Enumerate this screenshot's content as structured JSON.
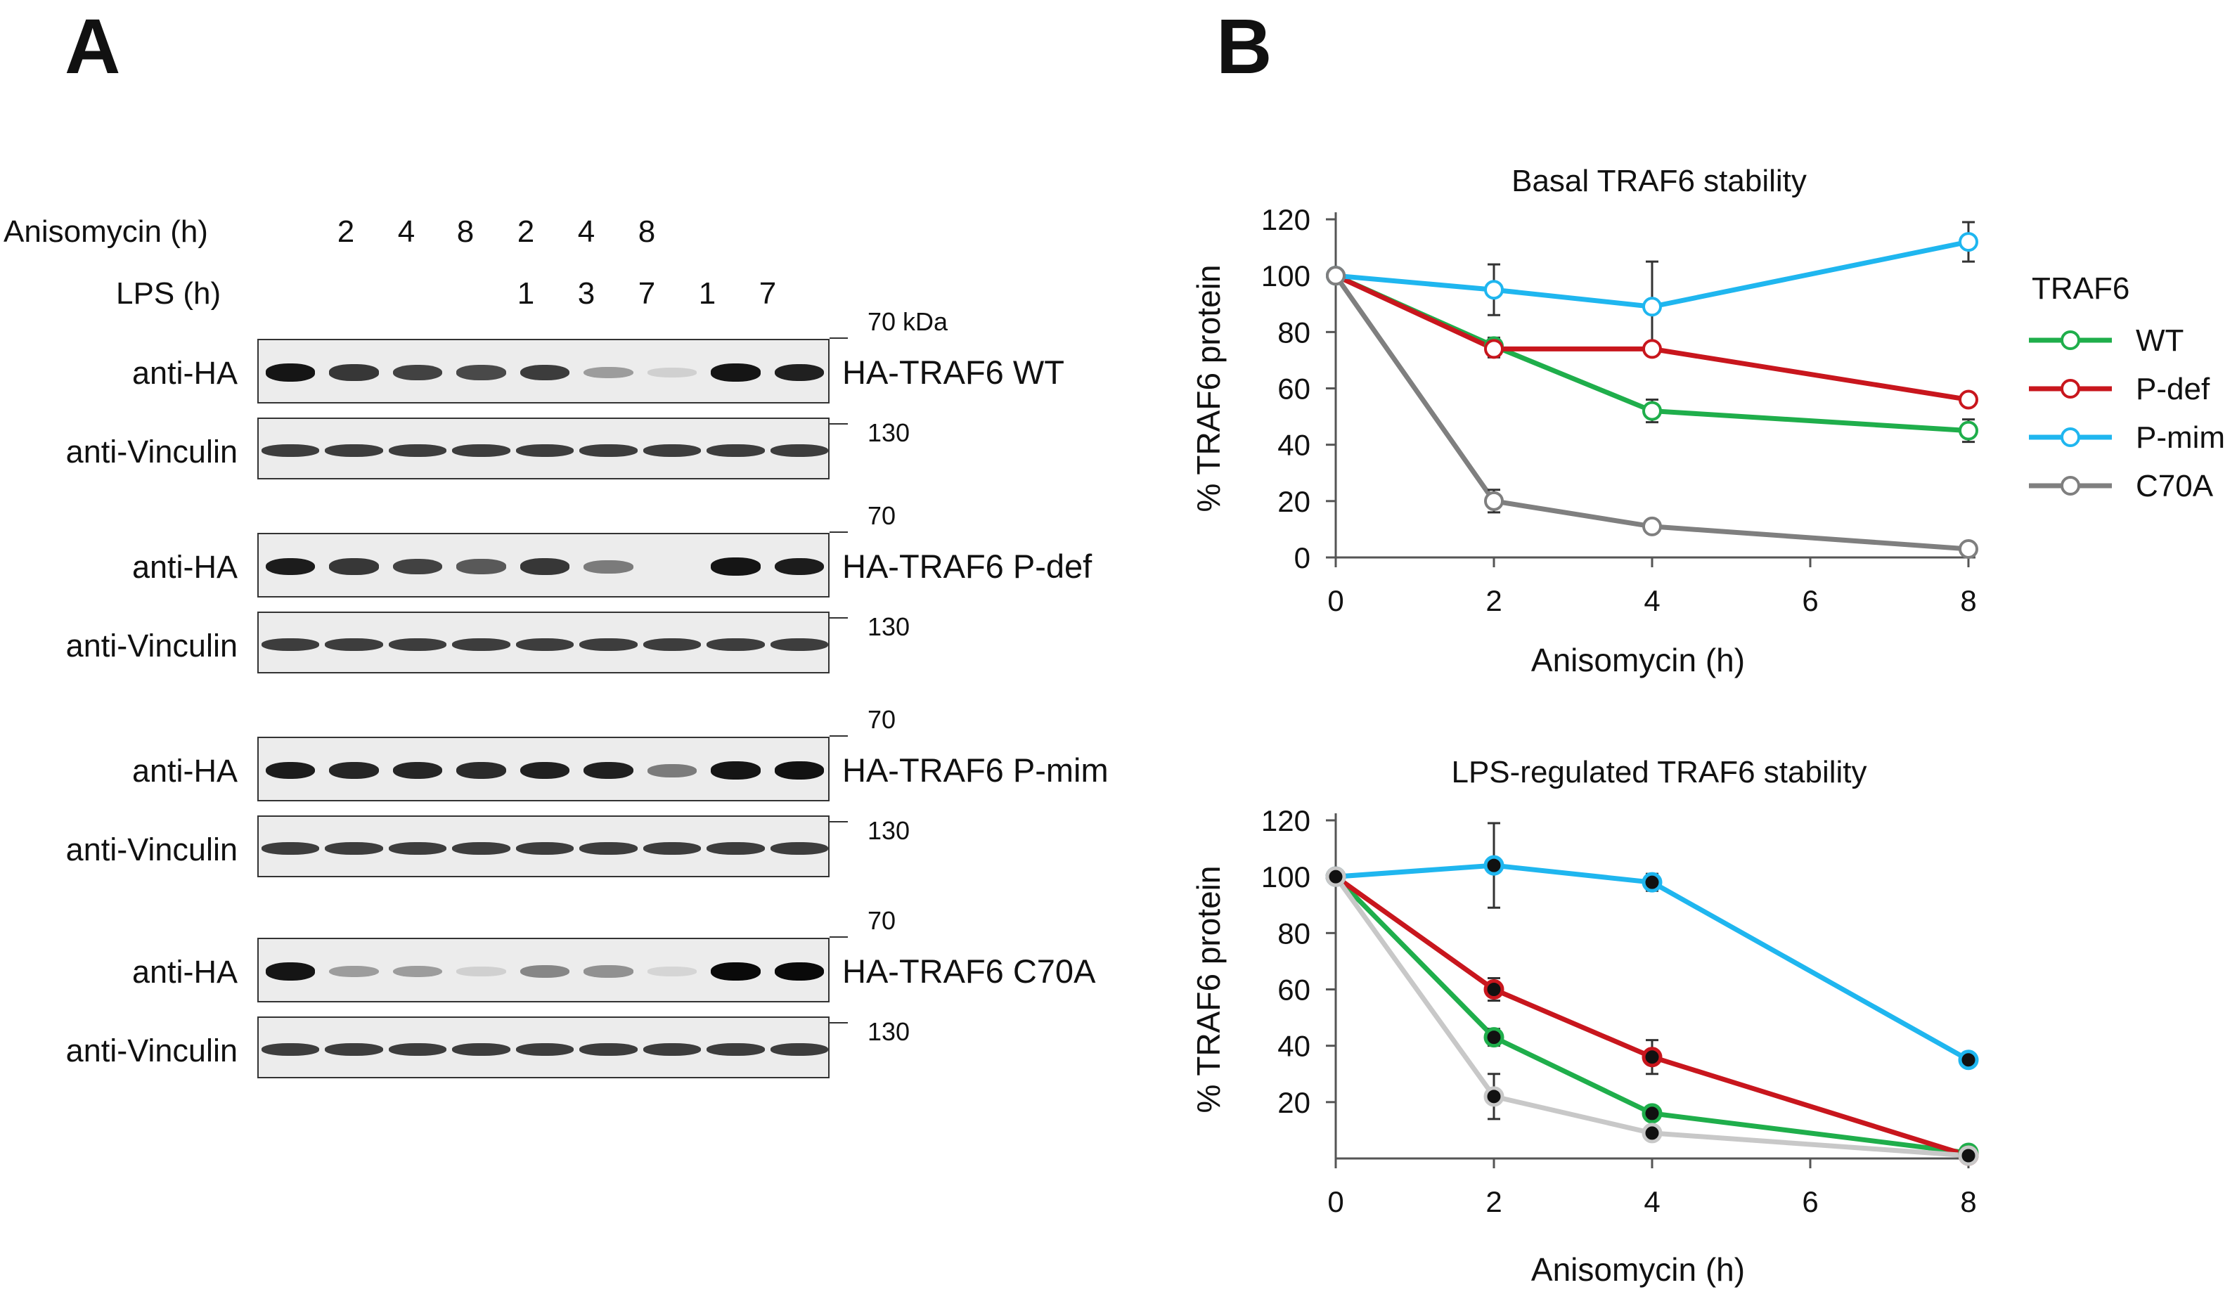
{
  "panels": {
    "a": "A",
    "b": "B"
  },
  "header": {
    "anisomycin_label": "Anisomycin (h)",
    "lps_label": "LPS (h)",
    "anisomycin_values": [
      "2",
      "4",
      "8",
      "2",
      "4",
      "8"
    ],
    "lps_values": [
      "1",
      "3",
      "7",
      "1",
      "7"
    ]
  },
  "blots": [
    {
      "ha_label": "anti-HA",
      "vinc_label": "anti-Vinculin",
      "construct": "HA-TRAF6 WT",
      "marker_top": "70 kDa",
      "marker_vinc": "130",
      "ha_intensity": [
        0.95,
        0.8,
        0.75,
        0.72,
        0.78,
        0.35,
        0.12,
        0.95,
        0.9
      ]
    },
    {
      "ha_label": "anti-HA",
      "vinc_label": "anti-Vinculin",
      "construct": "HA-TRAF6 P-def",
      "marker_top": "70",
      "marker_vinc": "130",
      "ha_intensity": [
        0.92,
        0.8,
        0.75,
        0.65,
        0.8,
        0.5,
        0.0,
        0.95,
        0.92
      ]
    },
    {
      "ha_label": "anti-HA",
      "vinc_label": "anti-Vinculin",
      "construct": "HA-TRAF6 P-mim",
      "marker_top": "70",
      "marker_vinc": "130",
      "ha_intensity": [
        0.92,
        0.88,
        0.88,
        0.86,
        0.9,
        0.9,
        0.5,
        0.95,
        0.97
      ]
    },
    {
      "ha_label": "anti-HA",
      "vinc_label": "anti-Vinculin",
      "construct": "HA-TRAF6 C70A",
      "marker_top": "70",
      "marker_vinc": "130",
      "ha_intensity": [
        0.95,
        0.35,
        0.35,
        0.12,
        0.45,
        0.4,
        0.1,
        1.0,
        1.0
      ]
    }
  ],
  "chart_data": [
    {
      "type": "line",
      "title": "Basal TRAF6 stability",
      "xlabel": "Anisomycin (h)",
      "ylabel": "% TRAF6 protein",
      "x": [
        0,
        2,
        4,
        8
      ],
      "xticks": [
        "0",
        "2",
        "4",
        "6",
        "8"
      ],
      "yticks": [
        "0",
        "20",
        "40",
        "60",
        "80",
        "100",
        "120"
      ],
      "xlim": [
        0,
        8
      ],
      "ylim": [
        0,
        120
      ],
      "marker": "open-circle",
      "series": [
        {
          "name": "WT",
          "color": "#1fae4b",
          "values": [
            100,
            75,
            52,
            45
          ],
          "err": [
            0,
            3,
            4,
            4
          ]
        },
        {
          "name": "P-def",
          "color": "#c8161d",
          "values": [
            100,
            74,
            74,
            56
          ],
          "err": [
            0,
            3,
            2,
            2
          ]
        },
        {
          "name": "P-mim",
          "color": "#1fb6ef",
          "values": [
            100,
            95,
            89,
            112
          ],
          "err": [
            0,
            9,
            16,
            7
          ]
        },
        {
          "name": "C70A",
          "color": "#7f7f7f",
          "values": [
            100,
            20,
            11,
            3
          ],
          "err": [
            0,
            4,
            1,
            1
          ]
        }
      ],
      "legend_title": "TRAF6",
      "legend": [
        "WT",
        "P-def",
        "P-mim",
        "C70A"
      ]
    },
    {
      "type": "line",
      "title": "LPS-regulated TRAF6 stability",
      "xlabel": "Anisomycin (h)",
      "ylabel": "% TRAF6 protein",
      "x": [
        0,
        2,
        4,
        8
      ],
      "xticks": [
        "0",
        "2",
        "4",
        "6",
        "8"
      ],
      "yticks": [
        "20",
        "40",
        "60",
        "80",
        "100",
        "120"
      ],
      "xlim": [
        0,
        8
      ],
      "ylim": [
        0,
        120
      ],
      "marker": "filled-black-circle",
      "series": [
        {
          "name": "WT",
          "color": "#1fae4b",
          "values": [
            100,
            43,
            16,
            2
          ],
          "err": [
            0,
            3,
            2,
            1
          ]
        },
        {
          "name": "P-def",
          "color": "#c8161d",
          "values": [
            100,
            60,
            36,
            1
          ],
          "err": [
            0,
            4,
            6,
            1
          ]
        },
        {
          "name": "P-mim",
          "color": "#1fb6ef",
          "values": [
            100,
            104,
            98,
            35
          ],
          "err": [
            0,
            15,
            3,
            2
          ]
        },
        {
          "name": "C70A",
          "color": "#c8c8c8",
          "values": [
            100,
            22,
            9,
            1
          ],
          "err": [
            0,
            8,
            1,
            1
          ]
        }
      ]
    }
  ]
}
